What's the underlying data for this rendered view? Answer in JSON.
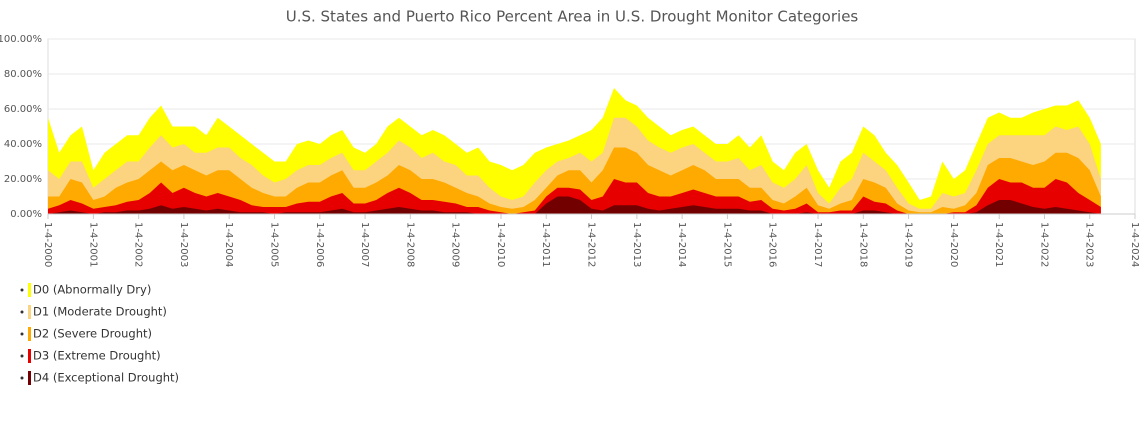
{
  "chart_data": {
    "type": "area",
    "title": "U.S. States and Puerto Rico Percent Area in U.S. Drought Monitor Categories",
    "x": [
      "2000-01-04",
      "2000-04-04",
      "2000-07-04",
      "2000-10-04",
      "2001-01-04",
      "2001-04-04",
      "2001-07-04",
      "2001-10-04",
      "2002-01-04",
      "2002-04-04",
      "2002-07-04",
      "2002-10-04",
      "2003-01-04",
      "2003-04-04",
      "2003-07-04",
      "2003-10-04",
      "2004-01-04",
      "2004-04-04",
      "2004-07-04",
      "2004-10-04",
      "2005-01-04",
      "2005-04-04",
      "2005-07-04",
      "2005-10-04",
      "2006-01-04",
      "2006-04-04",
      "2006-07-04",
      "2006-10-04",
      "2007-01-04",
      "2007-04-04",
      "2007-07-04",
      "2007-10-04",
      "2008-01-04",
      "2008-04-04",
      "2008-07-04",
      "2008-10-04",
      "2009-01-04",
      "2009-04-04",
      "2009-07-04",
      "2009-10-04",
      "2010-01-04",
      "2010-04-04",
      "2010-07-04",
      "2010-10-04",
      "2011-01-04",
      "2011-04-04",
      "2011-07-04",
      "2011-10-04",
      "2012-01-04",
      "2012-04-04",
      "2012-07-04",
      "2012-10-04",
      "2013-01-04",
      "2013-04-04",
      "2013-07-04",
      "2013-10-04",
      "2014-01-04",
      "2014-04-04",
      "2014-07-04",
      "2014-10-04",
      "2015-01-04",
      "2015-04-04",
      "2015-07-04",
      "2015-10-04",
      "2016-01-04",
      "2016-04-04",
      "2016-07-04",
      "2016-10-04",
      "2017-01-04",
      "2017-04-04",
      "2017-07-04",
      "2017-10-04",
      "2018-01-04",
      "2018-04-04",
      "2018-07-04",
      "2018-10-04",
      "2019-01-04",
      "2019-04-04",
      "2019-07-04",
      "2019-10-04",
      "2020-01-04",
      "2020-04-04",
      "2020-07-04",
      "2020-10-04",
      "2021-01-04",
      "2021-04-04",
      "2021-07-04",
      "2021-10-04",
      "2022-01-04",
      "2022-04-04",
      "2022-07-04",
      "2022-10-04",
      "2023-01-04",
      "2023-04-04"
    ],
    "series": [
      {
        "name": "D0 (Abnormally Dry)",
        "color": "#ffff00",
        "values": [
          55,
          35,
          45,
          50,
          25,
          35,
          40,
          45,
          45,
          55,
          62,
          50,
          50,
          50,
          45,
          55,
          50,
          45,
          40,
          35,
          30,
          30,
          40,
          42,
          40,
          45,
          48,
          38,
          35,
          40,
          50,
          55,
          50,
          45,
          48,
          45,
          40,
          35,
          38,
          30,
          28,
          25,
          28,
          35,
          38,
          40,
          42,
          45,
          48,
          55,
          72,
          65,
          62,
          55,
          50,
          45,
          48,
          50,
          45,
          40,
          40,
          45,
          38,
          45,
          30,
          25,
          35,
          40,
          25,
          15,
          30,
          35,
          50,
          45,
          35,
          28,
          18,
          8,
          10,
          30,
          20,
          25,
          40,
          55,
          58,
          55,
          55,
          58,
          60,
          62,
          62,
          65,
          55,
          40
        ]
      },
      {
        "name": "D1 (Moderate Drought)",
        "color": "#fcd37f",
        "values": [
          25,
          20,
          30,
          30,
          15,
          20,
          25,
          30,
          30,
          38,
          45,
          38,
          40,
          35,
          35,
          38,
          38,
          32,
          28,
          22,
          18,
          20,
          25,
          28,
          28,
          32,
          35,
          25,
          25,
          30,
          35,
          42,
          38,
          32,
          35,
          30,
          28,
          22,
          22,
          15,
          10,
          8,
          10,
          18,
          25,
          30,
          32,
          35,
          30,
          35,
          55,
          55,
          50,
          42,
          38,
          35,
          38,
          40,
          35,
          30,
          30,
          32,
          25,
          28,
          18,
          15,
          20,
          28,
          12,
          6,
          15,
          20,
          35,
          30,
          25,
          15,
          6,
          3,
          3,
          12,
          10,
          12,
          25,
          40,
          45,
          45,
          45,
          45,
          45,
          50,
          48,
          50,
          40,
          20
        ]
      },
      {
        "name": "D2 (Severe Drought)",
        "color": "#ffaa00",
        "values": [
          10,
          10,
          20,
          18,
          8,
          10,
          15,
          18,
          20,
          25,
          30,
          25,
          28,
          25,
          22,
          25,
          25,
          20,
          15,
          12,
          10,
          10,
          15,
          18,
          18,
          22,
          25,
          15,
          15,
          18,
          22,
          28,
          25,
          20,
          20,
          18,
          15,
          12,
          10,
          6,
          4,
          3,
          4,
          8,
          15,
          22,
          25,
          25,
          18,
          25,
          38,
          38,
          35,
          28,
          25,
          22,
          25,
          28,
          25,
          20,
          20,
          20,
          15,
          15,
          8,
          6,
          10,
          15,
          5,
          3,
          6,
          8,
          20,
          18,
          15,
          6,
          2,
          1,
          1,
          4,
          3,
          5,
          12,
          28,
          32,
          32,
          30,
          28,
          30,
          35,
          35,
          32,
          25,
          10
        ]
      },
      {
        "name": "D3 (Extreme Drought)",
        "color": "#e60000",
        "values": [
          3,
          5,
          8,
          6,
          3,
          4,
          5,
          7,
          8,
          12,
          18,
          12,
          15,
          12,
          10,
          12,
          10,
          8,
          5,
          4,
          4,
          4,
          6,
          7,
          7,
          10,
          12,
          6,
          6,
          8,
          12,
          15,
          12,
          8,
          8,
          7,
          6,
          4,
          4,
          2,
          1,
          0,
          1,
          2,
          10,
          15,
          15,
          14,
          8,
          10,
          20,
          18,
          18,
          12,
          10,
          10,
          12,
          14,
          12,
          10,
          10,
          10,
          7,
          8,
          3,
          2,
          3,
          6,
          1,
          1,
          2,
          2,
          10,
          7,
          6,
          2,
          0,
          0,
          0,
          0,
          1,
          1,
          5,
          15,
          20,
          18,
          18,
          15,
          15,
          20,
          18,
          12,
          8,
          4
        ]
      },
      {
        "name": "D4 (Exceptional Drought)",
        "color": "#730000",
        "values": [
          0,
          1,
          2,
          1,
          0,
          1,
          1,
          2,
          2,
          3,
          5,
          3,
          4,
          3,
          2,
          3,
          2,
          1,
          1,
          1,
          0,
          1,
          1,
          1,
          1,
          2,
          3,
          1,
          1,
          2,
          3,
          4,
          3,
          2,
          2,
          1,
          1,
          1,
          0,
          0,
          0,
          0,
          0,
          0,
          6,
          10,
          10,
          8,
          3,
          2,
          5,
          5,
          5,
          3,
          2,
          3,
          4,
          5,
          4,
          3,
          3,
          3,
          2,
          2,
          0,
          0,
          0,
          1,
          0,
          0,
          0,
          0,
          2,
          2,
          1,
          0,
          0,
          0,
          0,
          0,
          0,
          0,
          1,
          5,
          8,
          8,
          6,
          4,
          3,
          4,
          3,
          2,
          1,
          0
        ]
      }
    ],
    "xlim": [
      "2000-01-04",
      "2024-01-04"
    ],
    "xticks": [
      {
        "value": "2000-01-04",
        "label": "1-4-2000"
      },
      {
        "value": "2001-01-04",
        "label": "1-4-2001"
      },
      {
        "value": "2002-01-04",
        "label": "1-4-2002"
      },
      {
        "value": "2003-01-04",
        "label": "1-4-2003"
      },
      {
        "value": "2004-01-04",
        "label": "1-4-2004"
      },
      {
        "value": "2005-01-04",
        "label": "1-4-2005"
      },
      {
        "value": "2006-01-04",
        "label": "1-4-2006"
      },
      {
        "value": "2007-01-04",
        "label": "1-4-2007"
      },
      {
        "value": "2008-01-04",
        "label": "1-4-2008"
      },
      {
        "value": "2009-01-04",
        "label": "1-4-2009"
      },
      {
        "value": "2010-01-04",
        "label": "1-4-2010"
      },
      {
        "value": "2011-01-04",
        "label": "1-4-2011"
      },
      {
        "value": "2012-01-04",
        "label": "1-4-2012"
      },
      {
        "value": "2013-01-04",
        "label": "1-4-2013"
      },
      {
        "value": "2014-01-04",
        "label": "1-4-2014"
      },
      {
        "value": "2015-01-04",
        "label": "1-4-2015"
      },
      {
        "value": "2016-01-04",
        "label": "1-4-2016"
      },
      {
        "value": "2017-01-04",
        "label": "1-4-2017"
      },
      {
        "value": "2018-01-04",
        "label": "1-4-2018"
      },
      {
        "value": "2019-01-04",
        "label": "1-4-2019"
      },
      {
        "value": "2020-01-04",
        "label": "1-4-2020"
      },
      {
        "value": "2021-01-04",
        "label": "1-4-2021"
      },
      {
        "value": "2022-01-04",
        "label": "1-4-2022"
      },
      {
        "value": "2023-01-04",
        "label": "1-4-2023"
      },
      {
        "value": "2024-01-04",
        "label": "1-4-2024"
      }
    ],
    "ylim": [
      0,
      100
    ],
    "yticks": [
      {
        "value": 0,
        "label": "0.00%"
      },
      {
        "value": 20,
        "label": "20.00%"
      },
      {
        "value": 40,
        "label": "40.00%"
      },
      {
        "value": 60,
        "label": "60.00%"
      },
      {
        "value": 80,
        "label": "80.00%"
      },
      {
        "value": 100,
        "label": "100.00%"
      }
    ],
    "grid": true
  }
}
